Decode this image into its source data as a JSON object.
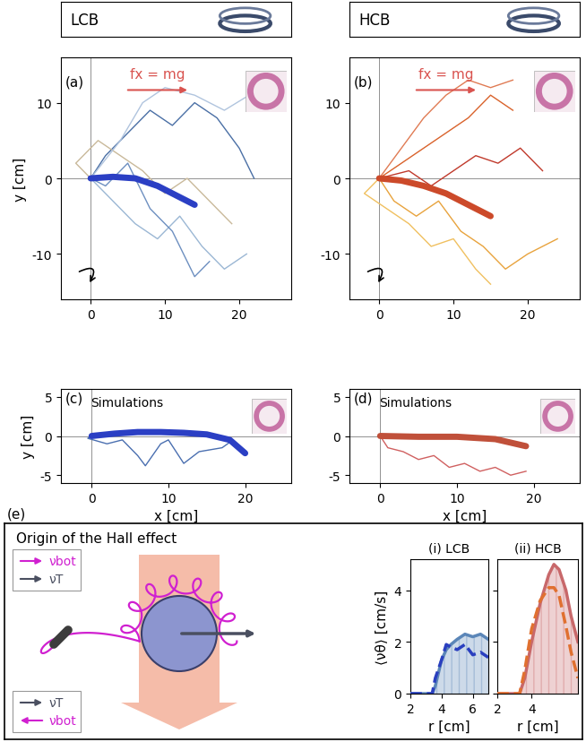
{
  "headers": [
    "LCB",
    "HCB"
  ],
  "chart_data": [
    {
      "type": "line",
      "label": "(a)",
      "annotation": "fx = mg",
      "ylabel": "y [cm]",
      "xlim": [
        -4,
        27
      ],
      "ylim": [
        -16,
        16
      ],
      "xticks": [
        0,
        10,
        20
      ],
      "yticks": [
        -10,
        0,
        10
      ],
      "series": [
        {
          "type": "line",
          "color": "#4a6fa5",
          "x": [
            0,
            2,
            5,
            8,
            11,
            14,
            17,
            20,
            22
          ],
          "values": [
            0,
            3,
            6,
            9,
            7,
            10,
            8,
            4,
            0
          ]
        },
        {
          "type": "line",
          "color": "#9bb7d4",
          "x": [
            0,
            3,
            6,
            9,
            12,
            15,
            18,
            21
          ],
          "values": [
            0,
            -3,
            -6,
            -8,
            -5,
            -9,
            -12,
            -10
          ]
        },
        {
          "type": "line",
          "color": "#c9b99a",
          "x": [
            0,
            -2,
            1,
            4,
            7,
            10,
            13,
            16,
            19
          ],
          "values": [
            0,
            2,
            5,
            3,
            1,
            -2,
            0,
            -3,
            -6
          ]
        },
        {
          "type": "line",
          "color": "#6d8fc0",
          "x": [
            0,
            2,
            5,
            8,
            11,
            14,
            16
          ],
          "values": [
            0,
            -1,
            2,
            -4,
            -7,
            -13,
            -11
          ]
        },
        {
          "type": "line",
          "color": "#b0c4de",
          "x": [
            0,
            4,
            7,
            10,
            14,
            18,
            23
          ],
          "values": [
            0,
            5,
            10,
            12,
            11,
            9,
            12
          ]
        },
        {
          "type": "mean",
          "color": "#2b3fc4",
          "x": [
            0,
            3,
            6,
            9,
            12,
            14
          ],
          "values": [
            0,
            0.2,
            0,
            -1,
            -2.5,
            -3.5
          ]
        }
      ]
    },
    {
      "type": "line",
      "label": "(b)",
      "annotation": "fx = mg",
      "xlim": [
        -4,
        27
      ],
      "ylim": [
        -16,
        16
      ],
      "xticks": [
        0,
        10,
        20
      ],
      "yticks": [
        -10,
        0,
        10
      ],
      "series": [
        {
          "type": "line",
          "color": "#d9622b",
          "x": [
            0,
            3,
            6,
            9,
            12,
            15,
            18
          ],
          "values": [
            0,
            2,
            4,
            6,
            8,
            11,
            9
          ]
        },
        {
          "type": "line",
          "color": "#e8a33d",
          "x": [
            0,
            2,
            5,
            8,
            11,
            14,
            17,
            20,
            24
          ],
          "values": [
            0,
            -3,
            -5,
            -3,
            -7,
            -9,
            -12,
            -10,
            -8
          ]
        },
        {
          "type": "line",
          "color": "#c0392b",
          "x": [
            0,
            4,
            7,
            10,
            13,
            16,
            19,
            22
          ],
          "values": [
            0,
            1,
            -1,
            1,
            3,
            2,
            4,
            1
          ]
        },
        {
          "type": "line",
          "color": "#f0c060",
          "x": [
            0,
            -2,
            1,
            4,
            7,
            10,
            13,
            15
          ],
          "values": [
            0,
            -2,
            -4,
            -6,
            -9,
            -8,
            -12,
            -14
          ]
        },
        {
          "type": "line",
          "color": "#e07b54",
          "x": [
            0,
            3,
            6,
            9,
            12,
            15,
            18
          ],
          "values": [
            0,
            4,
            8,
            11,
            13,
            12,
            13
          ]
        },
        {
          "type": "mean",
          "color": "#cc4a2a",
          "x": [
            0,
            3,
            6,
            9,
            12,
            15
          ],
          "values": [
            0,
            -0.3,
            -1,
            -2,
            -3.5,
            -5
          ]
        }
      ]
    },
    {
      "type": "line",
      "label": "(c)",
      "subtitle": "Simulations",
      "xlabel": "x [cm]",
      "ylabel": "y [cm]",
      "xlim": [
        -4,
        26
      ],
      "ylim": [
        -6,
        6
      ],
      "xticks": [
        0,
        10,
        20
      ],
      "yticks": [
        -5,
        0,
        5
      ],
      "series": [
        {
          "type": "line",
          "color": "#4a6fb0",
          "x": [
            0,
            -0.5,
            2,
            4,
            6,
            7,
            9,
            10,
            12,
            14,
            17,
            18
          ],
          "values": [
            0,
            -0.3,
            -1,
            -0.5,
            -2.5,
            -3.8,
            -1,
            -0.5,
            -3.5,
            -2,
            -1.5,
            -0.8
          ]
        },
        {
          "type": "mean",
          "color": "#2b3fc4",
          "x": [
            0,
            3,
            6,
            9,
            12,
            15,
            18,
            20
          ],
          "values": [
            0,
            0.3,
            0.5,
            0.5,
            0.4,
            0.2,
            -0.5,
            -2.2
          ]
        }
      ]
    },
    {
      "type": "line",
      "label": "(d)",
      "subtitle": "Simulations",
      "xlabel": "x [cm]",
      "xlim": [
        -4,
        26
      ],
      "ylim": [
        -6,
        6
      ],
      "xticks": [
        0,
        10,
        20
      ],
      "yticks": [
        -5,
        0,
        5
      ],
      "series": [
        {
          "type": "line",
          "color": "#d06060",
          "x": [
            0,
            1,
            3,
            5,
            7,
            9,
            11,
            13,
            15,
            17,
            19
          ],
          "values": [
            0,
            -1.5,
            -2,
            -3,
            -2.5,
            -4,
            -3.5,
            -4.5,
            -4,
            -5,
            -4.5
          ]
        },
        {
          "type": "mean",
          "color": "#c0503a",
          "x": [
            0,
            5,
            10,
            15,
            19
          ],
          "values": [
            0,
            -0.1,
            -0.1,
            -0.4,
            -1.3
          ]
        }
      ]
    },
    {
      "type": "line",
      "title": "(i) LCB",
      "xlabel": "r [cm]",
      "ylabel": "⟨νθ⟩ [cm/s]",
      "xlim": [
        2,
        7
      ],
      "ylim": [
        0,
        5.2
      ],
      "xticks": [
        2,
        4,
        6
      ],
      "yticks": [
        0,
        2,
        4
      ],
      "x": [
        2,
        3,
        3.4,
        3.6,
        4,
        4.3,
        4.6,
        5,
        5.5,
        6,
        6.5,
        7
      ],
      "series": [
        {
          "type": "area",
          "color": "#5b86b8",
          "values": [
            0,
            0,
            0,
            0.3,
            1.3,
            1.7,
            1.9,
            2.1,
            2.3,
            2.2,
            2.3,
            2.1
          ]
        },
        {
          "type": "line",
          "line_style": "dashed",
          "color": "#2a3fbf",
          "values": [
            0,
            0,
            0,
            0.6,
            1.3,
            1.9,
            1.8,
            1.7,
            1.9,
            1.5,
            1.6,
            1.4
          ]
        }
      ]
    },
    {
      "type": "line",
      "title": "(ii) HCB",
      "xlabel": "r [cm]",
      "tick_labels": "x",
      "xlim": [
        2,
        6.7
      ],
      "ylim": [
        0,
        5.2
      ],
      "xticks": [
        2,
        4
      ],
      "yticks": [
        0,
        2,
        4
      ],
      "x": [
        2,
        3,
        3.3,
        3.6,
        4,
        4.5,
        5,
        5.3,
        5.6,
        6,
        6.3,
        6.7
      ],
      "series": [
        {
          "type": "area",
          "color": "#c8686a",
          "values": [
            0,
            0,
            0,
            0.6,
            2.0,
            3.5,
            4.6,
            5.0,
            4.8,
            4.0,
            3.0,
            2.0
          ]
        },
        {
          "type": "line",
          "line_style": "dashed",
          "color": "#e07030",
          "values": [
            0,
            0,
            0,
            0.9,
            2.5,
            3.6,
            4.1,
            4.1,
            3.8,
            2.6,
            1.6,
            0.6
          ]
        }
      ]
    }
  ],
  "diagram": {
    "label": "(e)",
    "title": "Origin of the Hall effect",
    "legend_top": [
      "νbot",
      "νT"
    ],
    "legend_bottom": [
      "νT",
      "νbot"
    ]
  }
}
